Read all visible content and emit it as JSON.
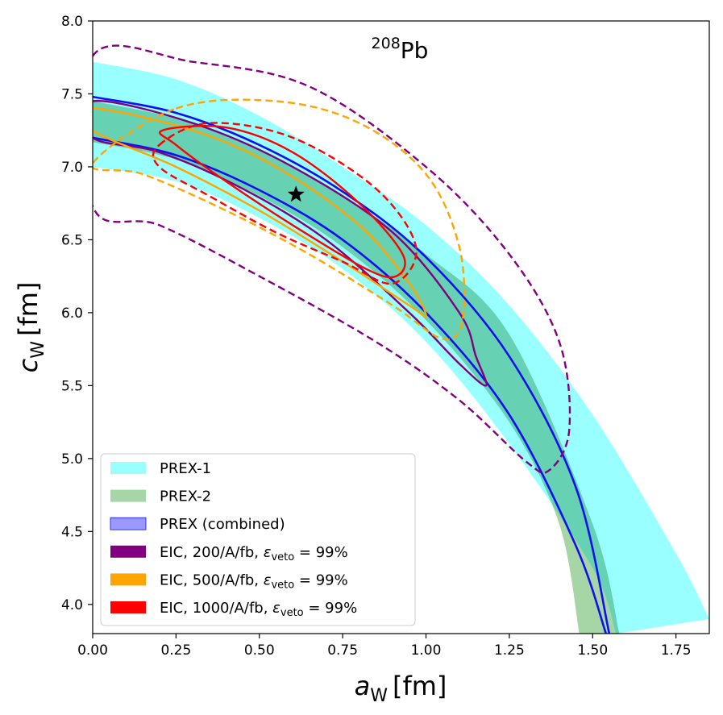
{
  "chart_data": {
    "type": "contour",
    "title": "208Pb",
    "title_parts": {
      "superscript": "208",
      "element": "Pb"
    },
    "xlabel": "a_W [fm]",
    "xlabel_parts": {
      "symbol": "a",
      "subscript": "W",
      "unit": "[fm]"
    },
    "ylabel": "c_W [fm]",
    "ylabel_parts": {
      "symbol": "c",
      "subscript": "W",
      "unit": "[fm]"
    },
    "xlim": [
      0.0,
      1.85
    ],
    "ylim": [
      3.8,
      8.0
    ],
    "xticks": [
      0.0,
      0.25,
      0.5,
      0.75,
      1.0,
      1.25,
      1.5,
      1.75
    ],
    "xtick_labels": [
      "0.00",
      "0.25",
      "0.50",
      "0.75",
      "1.00",
      "1.25",
      "1.50",
      "1.75"
    ],
    "yticks": [
      4.0,
      4.5,
      5.0,
      5.5,
      6.0,
      6.5,
      7.0,
      7.5,
      8.0
    ],
    "ytick_labels": [
      "4.0",
      "4.5",
      "5.0",
      "5.5",
      "6.0",
      "6.5",
      "7.0",
      "7.5",
      "8.0"
    ],
    "legend_position": "bottom-left",
    "colors": {
      "prex1": "#99ffff",
      "prex2": "#a6d6a6",
      "overlap": "#66d1b3",
      "prex_combined": "#1010ee",
      "prex_combined_legend": "#9999ff",
      "eic200": "#800080",
      "eic500": "#ffa500",
      "eic1000": "#ff0000"
    },
    "legend": [
      {
        "key": "prex1",
        "label": "PREX-1"
      },
      {
        "key": "prex2",
        "label": "PREX-2"
      },
      {
        "key": "prex_combined",
        "label": "PREX (combined)"
      },
      {
        "key": "eic200",
        "label": "EIC, 200/A/fb, ",
        "eps_label": "ε",
        "eps_sub": "veto",
        "eps_val": " = 99%"
      },
      {
        "key": "eic500",
        "label": "EIC, 500/A/fb, ",
        "eps_label": "ε",
        "eps_sub": "veto",
        "eps_val": " = 99%"
      },
      {
        "key": "eic1000",
        "label": "EIC, 1000/A/fb, ",
        "eps_label": "ε",
        "eps_sub": "veto",
        "eps_val": " = 99%"
      }
    ],
    "best_fit": {
      "a": 0.61,
      "c": 6.81
    },
    "bands": [
      {
        "name": "PREX-1",
        "key": "prex1",
        "lower": [
          [
            0,
            7.0
          ],
          [
            0.25,
            6.9
          ],
          [
            0.5,
            6.65
          ],
          [
            0.75,
            6.3
          ],
          [
            1.0,
            5.8
          ],
          [
            1.25,
            5.1
          ],
          [
            1.5,
            4.25
          ],
          [
            1.57,
            3.8
          ]
        ],
        "upper": [
          [
            0,
            7.72
          ],
          [
            0.25,
            7.6
          ],
          [
            0.5,
            7.35
          ],
          [
            0.75,
            7.0
          ],
          [
            1.0,
            6.6
          ],
          [
            1.25,
            6.05
          ],
          [
            1.5,
            5.3
          ],
          [
            1.75,
            4.35
          ],
          [
            1.85,
            3.9
          ]
        ]
      },
      {
        "name": "PREX-2",
        "key": "prex2",
        "lower": [
          [
            0,
            7.17
          ],
          [
            0.25,
            7.05
          ],
          [
            0.5,
            6.8
          ],
          [
            0.75,
            6.45
          ],
          [
            1.0,
            5.95
          ],
          [
            1.25,
            5.25
          ],
          [
            1.4,
            4.55
          ],
          [
            1.46,
            3.8
          ]
        ],
        "upper": [
          [
            0,
            7.45
          ],
          [
            0.25,
            7.33
          ],
          [
            0.5,
            7.12
          ],
          [
            0.75,
            6.8
          ],
          [
            1.0,
            6.4
          ],
          [
            1.25,
            5.85
          ],
          [
            1.5,
            4.55
          ],
          [
            1.58,
            3.8
          ]
        ]
      },
      {
        "name": "PREX (combined)",
        "key": "prex_combined",
        "lower": [
          [
            0,
            7.2
          ],
          [
            0.25,
            7.08
          ],
          [
            0.5,
            6.84
          ],
          [
            0.75,
            6.5
          ],
          [
            1.0,
            6.0
          ],
          [
            1.25,
            5.3
          ],
          [
            1.45,
            4.4
          ],
          [
            1.54,
            3.8
          ]
        ],
        "upper": [
          [
            0,
            7.48
          ],
          [
            0.25,
            7.37
          ],
          [
            0.5,
            7.15
          ],
          [
            0.75,
            6.83
          ],
          [
            1.0,
            6.38
          ],
          [
            1.25,
            5.7
          ],
          [
            1.45,
            4.8
          ],
          [
            1.55,
            3.8
          ]
        ]
      }
    ],
    "ellipses": [
      {
        "key": "eic200",
        "style": "solid",
        "points": [
          [
            0,
            7.45
          ],
          [
            0.3,
            7.3
          ],
          [
            0.6,
            7.0
          ],
          [
            0.9,
            6.55
          ],
          [
            1.1,
            6.0
          ],
          [
            1.15,
            5.7
          ],
          [
            1.18,
            5.5
          ],
          [
            1.1,
            5.65
          ],
          [
            0.95,
            6.0
          ],
          [
            0.7,
            6.5
          ],
          [
            0.45,
            6.85
          ],
          [
            0.2,
            7.1
          ],
          [
            0,
            7.2
          ]
        ]
      },
      {
        "key": "eic200",
        "style": "dashed",
        "points": [
          [
            0,
            7.76
          ],
          [
            0.3,
            7.72
          ],
          [
            0.65,
            7.55
          ],
          [
            1.0,
            7.0
          ],
          [
            1.25,
            6.4
          ],
          [
            1.4,
            5.8
          ],
          [
            1.43,
            5.2
          ],
          [
            1.37,
            4.92
          ],
          [
            1.3,
            4.98
          ],
          [
            1.1,
            5.4
          ],
          [
            0.85,
            5.8
          ],
          [
            0.5,
            6.25
          ],
          [
            0.2,
            6.6
          ],
          [
            0,
            6.73
          ]
        ]
      },
      {
        "key": "eic500",
        "style": "solid",
        "points": [
          [
            0,
            7.4
          ],
          [
            0.3,
            7.25
          ],
          [
            0.55,
            7.0
          ],
          [
            0.8,
            6.6
          ],
          [
            0.95,
            6.2
          ],
          [
            1.0,
            5.98
          ],
          [
            0.95,
            6.05
          ],
          [
            0.75,
            6.35
          ],
          [
            0.5,
            6.7
          ],
          [
            0.25,
            7.0
          ],
          [
            0,
            7.25
          ]
        ]
      },
      {
        "key": "eic500",
        "style": "dashed",
        "points": [
          [
            0.25,
            7.4
          ],
          [
            0.55,
            7.45
          ],
          [
            0.8,
            7.3
          ],
          [
            1.0,
            6.95
          ],
          [
            1.1,
            6.45
          ],
          [
            1.11,
            5.95
          ],
          [
            1.05,
            5.82
          ],
          [
            0.9,
            6.05
          ],
          [
            0.65,
            6.4
          ],
          [
            0.4,
            6.7
          ],
          [
            0.15,
            6.95
          ],
          [
            0,
            7.02
          ]
        ]
      },
      {
        "key": "eic1000",
        "style": "solid",
        "points": [
          [
            0.21,
            7.25
          ],
          [
            0.4,
            7.27
          ],
          [
            0.6,
            7.1
          ],
          [
            0.8,
            6.75
          ],
          [
            0.93,
            6.4
          ],
          [
            0.91,
            6.25
          ],
          [
            0.82,
            6.3
          ],
          [
            0.6,
            6.6
          ],
          [
            0.4,
            6.9
          ],
          [
            0.25,
            7.15
          ]
        ]
      },
      {
        "key": "eic1000",
        "style": "dashed",
        "points": [
          [
            0.2,
            7.15
          ],
          [
            0.35,
            7.3
          ],
          [
            0.6,
            7.2
          ],
          [
            0.85,
            6.85
          ],
          [
            0.97,
            6.45
          ],
          [
            0.9,
            6.2
          ],
          [
            0.75,
            6.35
          ],
          [
            0.55,
            6.55
          ],
          [
            0.35,
            6.8
          ],
          [
            0.2,
            7.0
          ]
        ]
      }
    ]
  }
}
